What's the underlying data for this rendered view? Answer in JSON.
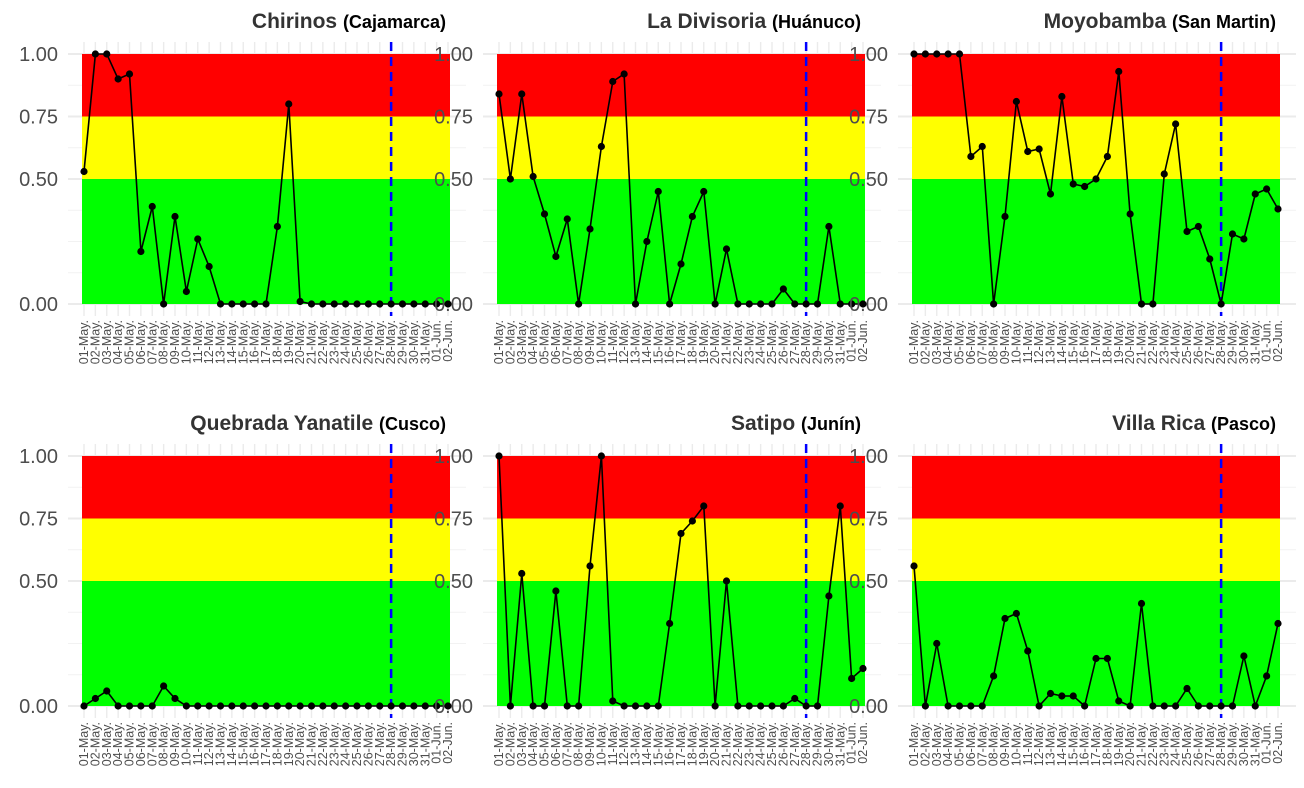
{
  "chart_data": {
    "type": "line",
    "shared": {
      "dates": [
        "01-May.",
        "02-May.",
        "03-May.",
        "04-May.",
        "05-May.",
        "06-May.",
        "07-May.",
        "08-May.",
        "09-May.",
        "10-May.",
        "11-May.",
        "12-May.",
        "13-May.",
        "14-May.",
        "15-May.",
        "16-May.",
        "17-May.",
        "18-May.",
        "19-May.",
        "20-May.",
        "21-May.",
        "22-May.",
        "23-May.",
        "24-May.",
        "25-May.",
        "26-May.",
        "27-May.",
        "28-May.",
        "29-May.",
        "30-May.",
        "31-May.",
        "01-Jun.",
        "02-Jun."
      ],
      "ylim": [
        0,
        1
      ],
      "yticks": [
        "0.00",
        "0.50",
        "0.75",
        "1.00"
      ],
      "ytick_values": [
        0,
        0.5,
        0.75,
        1
      ],
      "bands": [
        {
          "from": 0,
          "to": 0.5,
          "color": "#00ff00"
        },
        {
          "from": 0.5,
          "to": 0.75,
          "color": "#ffff00"
        },
        {
          "from": 0.75,
          "to": 1,
          "color": "#ff0000"
        }
      ],
      "reference_line": {
        "x": "28-May.",
        "color": "#0000ff",
        "style": "dashed"
      },
      "line_color": "#000000",
      "grid": true
    },
    "panels": [
      {
        "title": "Chirinos",
        "subtitle": "(Cajamarca)",
        "values": [
          0.53,
          1.0,
          1.0,
          0.9,
          0.92,
          0.21,
          0.39,
          0.0,
          0.35,
          0.05,
          0.26,
          0.15,
          0.0,
          0.0,
          0.0,
          0.0,
          0.0,
          0.31,
          0.8,
          0.01,
          0.0,
          0.0,
          0.0,
          0.0,
          0.0,
          0.0,
          0.0,
          0.0,
          0.0,
          0.0,
          0.0,
          0.0,
          0.0
        ]
      },
      {
        "title": "La Divisoria",
        "subtitle": "(Huánuco)",
        "values": [
          0.84,
          0.5,
          0.84,
          0.51,
          0.36,
          0.19,
          0.34,
          0.0,
          0.3,
          0.63,
          0.89,
          0.92,
          0.0,
          0.25,
          0.45,
          0.0,
          0.16,
          0.35,
          0.45,
          0.0,
          0.22,
          0.0,
          0.0,
          0.0,
          0.0,
          0.06,
          0.0,
          0.0,
          0.0,
          0.31,
          0.0,
          0.0,
          0.0
        ]
      },
      {
        "title": "Moyobamba",
        "subtitle": "(San Martin)",
        "values": [
          1.0,
          1.0,
          1.0,
          1.0,
          1.0,
          0.59,
          0.63,
          0.0,
          0.35,
          0.81,
          0.61,
          0.62,
          0.44,
          0.83,
          0.48,
          0.47,
          0.5,
          0.59,
          0.93,
          0.36,
          0.0,
          0.0,
          0.52,
          0.72,
          0.29,
          0.31,
          0.18,
          0.0,
          0.28,
          0.26,
          0.44,
          0.46,
          0.38
        ]
      },
      {
        "title": "Quebrada Yanatile",
        "subtitle": "(Cusco)",
        "values": [
          0.0,
          0.03,
          0.06,
          0.0,
          0.0,
          0.0,
          0.0,
          0.08,
          0.03,
          0.0,
          0.0,
          0.0,
          0.0,
          0.0,
          0.0,
          0.0,
          0.0,
          0.0,
          0.0,
          0.0,
          0.0,
          0.0,
          0.0,
          0.0,
          0.0,
          0.0,
          0.0,
          0.0,
          0.0,
          0.0,
          0.0,
          0.0,
          0.0
        ]
      },
      {
        "title": "Satipo",
        "subtitle": "(Junín)",
        "values": [
          1.0,
          0.0,
          0.53,
          0.0,
          0.0,
          0.46,
          0.0,
          0.0,
          0.56,
          1.0,
          0.02,
          0.0,
          0.0,
          0.0,
          0.0,
          0.33,
          0.69,
          0.74,
          0.8,
          0.0,
          0.5,
          0.0,
          0.0,
          0.0,
          0.0,
          0.0,
          0.03,
          0.0,
          0.0,
          0.44,
          0.8,
          0.11,
          0.15
        ]
      },
      {
        "title": "Villa Rica",
        "subtitle": "(Pasco)",
        "values": [
          0.56,
          0.0,
          0.25,
          0.0,
          0.0,
          0.0,
          0.0,
          0.12,
          0.35,
          0.37,
          0.22,
          0.0,
          0.05,
          0.04,
          0.04,
          0.0,
          0.19,
          0.19,
          0.02,
          0.0,
          0.41,
          0.0,
          0.0,
          0.0,
          0.07,
          0.0,
          0.0,
          0.0,
          0.0,
          0.2,
          0.0,
          0.12,
          0.33
        ]
      }
    ]
  }
}
